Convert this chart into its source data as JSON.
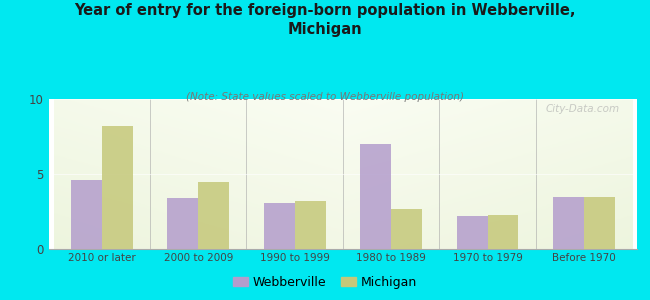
{
  "categories": [
    "2010 or later",
    "2000 to 2009",
    "1990 to 1999",
    "1980 to 1989",
    "1970 to 1979",
    "Before 1970"
  ],
  "webberville": [
    4.6,
    3.4,
    3.1,
    7.0,
    2.2,
    3.5
  ],
  "michigan": [
    8.2,
    4.5,
    3.2,
    2.7,
    2.3,
    3.5
  ],
  "webberville_color": "#b39dcc",
  "michigan_color": "#c5c87a",
  "title": "Year of entry for the foreign-born population in Webberville,\nMichigan",
  "subtitle": "(Note: State values scaled to Webberville population)",
  "legend_webberville": "Webberville",
  "legend_michigan": "Michigan",
  "ylim": [
    0,
    10
  ],
  "yticks": [
    0,
    5,
    10
  ],
  "background_color": "#00e8f0",
  "plot_bg_top": "#e8f0e0",
  "plot_bg_bottom": "#f8fdf5",
  "watermark": "City-Data.com",
  "bar_width": 0.32
}
